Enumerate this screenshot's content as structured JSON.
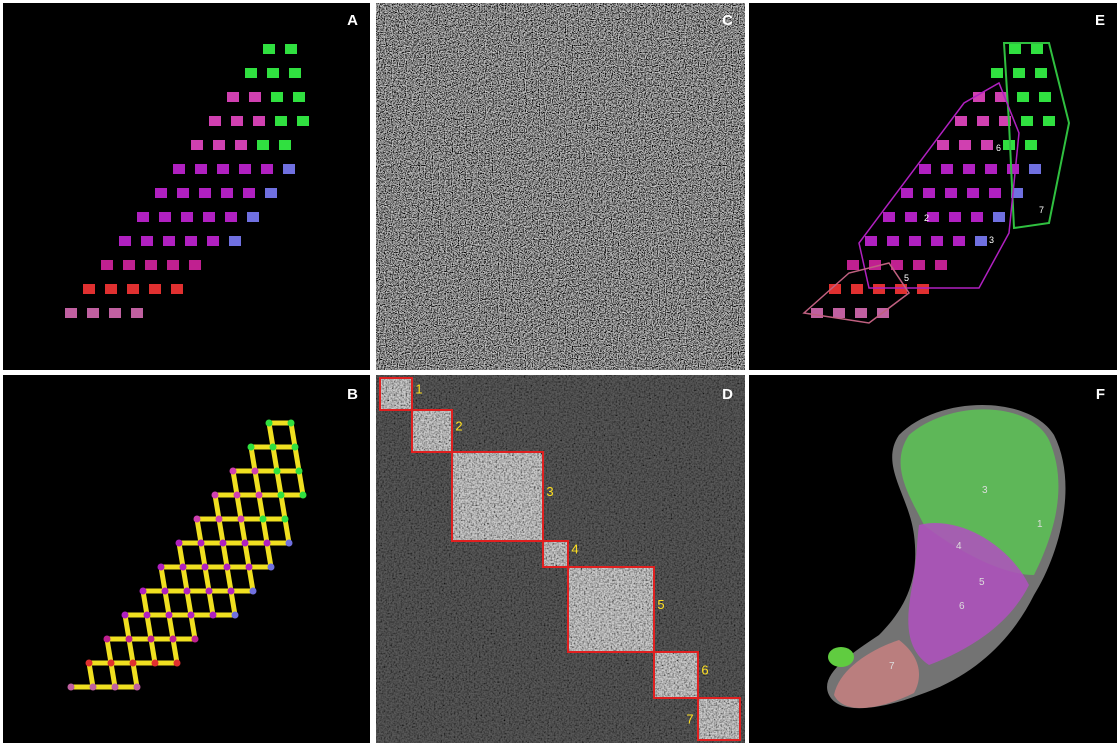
{
  "panels": [
    {
      "label": "A"
    },
    {
      "label": "B"
    },
    {
      "label": "C"
    },
    {
      "label": "D",
      "clusters": [
        "1",
        "2",
        "3",
        "4",
        "5",
        "6",
        "7"
      ]
    },
    {
      "label": "E",
      "regions": [
        "6",
        "7",
        "3",
        "5",
        "2"
      ]
    },
    {
      "label": "F",
      "regions": [
        "3",
        "1",
        "4",
        "5",
        "6",
        "7"
      ]
    }
  ]
}
